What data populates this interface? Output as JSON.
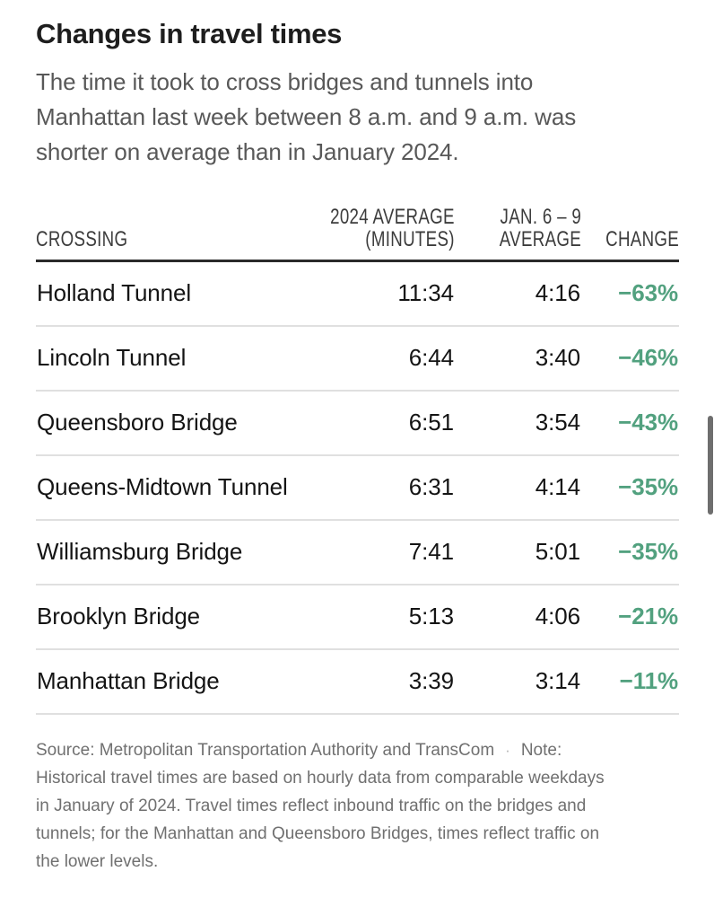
{
  "header": {
    "title": "Changes in travel times",
    "subtitle_lines": [
      "The time it took to cross bridges and tunnels into",
      "Manhattan last week between 8 a.m. and 9 a.m. was",
      "shorter on average than in January 2024."
    ]
  },
  "table": {
    "headers": {
      "crossing": "CROSSING",
      "avg2024_line1": "2024 AVERAGE",
      "avg2024_line2": "(MINUTES)",
      "jan_line1": "JAN. 6 – 9",
      "jan_line2": "AVERAGE",
      "change": "CHANGE"
    },
    "rows": [
      {
        "crossing": "Holland Tunnel",
        "avg2024": "11:34",
        "jan_avg": "4:16",
        "change": "−63%"
      },
      {
        "crossing": "Lincoln Tunnel",
        "avg2024": "6:44",
        "jan_avg": "3:40",
        "change": "−46%"
      },
      {
        "crossing": "Queensboro Bridge",
        "avg2024": "6:51",
        "jan_avg": "3:54",
        "change": "−43%"
      },
      {
        "crossing": "Queens-Midtown Tunnel",
        "avg2024": "6:31",
        "jan_avg": "4:14",
        "change": "−35%"
      },
      {
        "crossing": "Williamsburg Bridge",
        "avg2024": "7:41",
        "jan_avg": "5:01",
        "change": "−35%"
      },
      {
        "crossing": "Brooklyn Bridge",
        "avg2024": "5:13",
        "jan_avg": "4:06",
        "change": "−21%"
      },
      {
        "crossing": "Manhattan Bridge",
        "avg2024": "3:39",
        "jan_avg": "3:14",
        "change": "−11%"
      }
    ]
  },
  "footer": {
    "source": "Source: Metropolitan Transportation Authority and TransCom",
    "separator": "·",
    "note_label": "Note:",
    "note_lines": [
      "Historical travel times are based on hourly data from comparable weekdays",
      "in January of 2024. Travel times reflect inbound traffic on the bridges and",
      "tunnels; for the Manhattan and Queensboro Bridges, times reflect traffic on",
      "the lower levels."
    ]
  },
  "colors": {
    "change_green": "#52a17f",
    "title_text": "#1e1e1e",
    "subtitle_text": "#585858",
    "header_label_text": "#3c3c3c",
    "header_rule": "#2b2b2b",
    "row_text": "#141414",
    "row_separator": "#e0e0e0",
    "footer_text": "#707070",
    "scrollbar_thumb": "#6e6e6e",
    "background": "#ffffff"
  },
  "chart_data": {
    "type": "table",
    "title": "Changes in travel times",
    "subtitle": "The time it took to cross bridges and tunnels into Manhattan last week between 8 a.m. and 9 a.m. was shorter on average than in January 2024.",
    "columns": [
      "Crossing",
      "2024 average (minutes)",
      "Jan. 6 – 9 average",
      "Change"
    ],
    "rows": [
      [
        "Holland Tunnel",
        "11:34",
        "4:16",
        "−63%"
      ],
      [
        "Lincoln Tunnel",
        "6:44",
        "3:40",
        "−46%"
      ],
      [
        "Queensboro Bridge",
        "6:51",
        "3:54",
        "−43%"
      ],
      [
        "Queens-Midtown Tunnel",
        "6:31",
        "4:14",
        "−35%"
      ],
      [
        "Williamsburg Bridge",
        "7:41",
        "5:01",
        "−35%"
      ],
      [
        "Brooklyn Bridge",
        "5:13",
        "4:06",
        "−21%"
      ],
      [
        "Manhattan Bridge",
        "3:39",
        "3:14",
        "−11%"
      ]
    ],
    "note": "Historical travel times are based on hourly data from comparable weekdays in January of 2024. Travel times reflect inbound traffic on the bridges and tunnels; for the Manhattan and Queensboro Bridges, times reflect traffic on the lower levels.",
    "source": "Metropolitan Transportation Authority and TransCom"
  }
}
